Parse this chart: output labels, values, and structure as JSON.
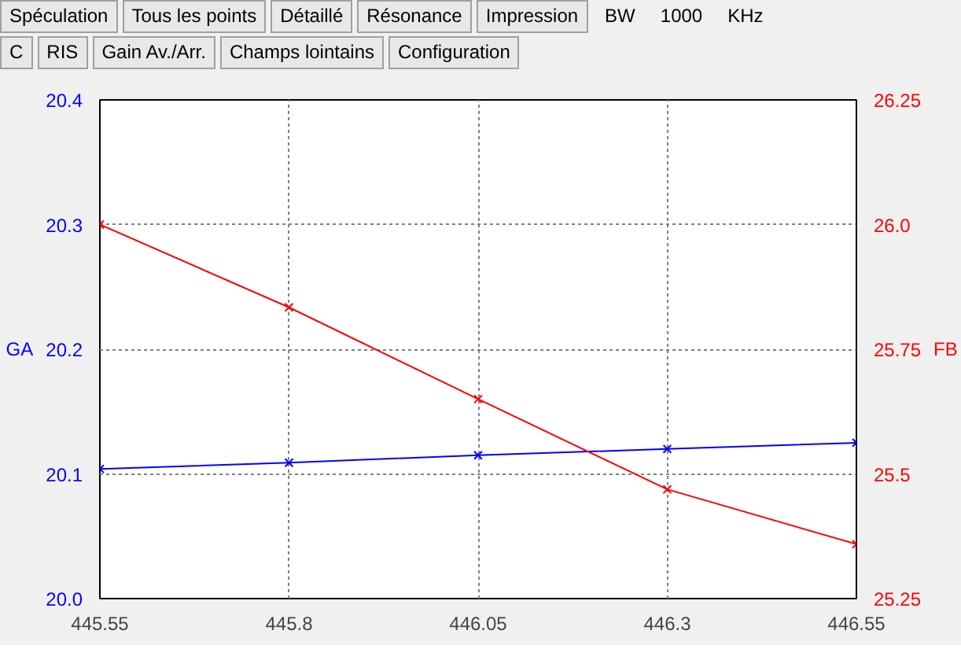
{
  "chart_data": {
    "type": "line",
    "x": [
      445.55,
      445.8,
      446.05,
      446.3,
      446.55
    ],
    "xlim": [
      445.55,
      446.55
    ],
    "xticks": [
      445.55,
      445.8,
      446.05,
      446.3,
      446.55
    ],
    "ylim": [
      20.0,
      20.4
    ],
    "yticks": [
      {
        "value": 20.0,
        "label": "20.0"
      },
      20.1,
      20.2,
      20.3,
      20.4
    ],
    "y2lim": [
      25.25,
      26.25
    ],
    "y2ticks": [
      25.25,
      25.5,
      25.75,
      {
        "value": 26.0,
        "label": "26.0"
      },
      26.25
    ],
    "ylabel": "GA",
    "y2label": "FB",
    "grid": true,
    "marker": "cross",
    "line_style": "solid",
    "series": [
      {
        "color": "#0000ff",
        "values": [
          20.104,
          20.109,
          20.115,
          20.12,
          20.125
        ]
      },
      {
        "color": "#ff0000",
        "axis": "y2",
        "values": [
          26.0,
          25.834,
          25.65,
          25.469,
          25.359
        ]
      }
    ],
    "annotations": [
      "Spéculation",
      "Tous les points",
      "Détaillé",
      "Résonance",
      "Impression",
      "BW",
      "1000",
      "KHz",
      "C",
      "RIS",
      "Gain Av./Arr.",
      "Champs lointains",
      "Configuration"
    ]
  }
}
